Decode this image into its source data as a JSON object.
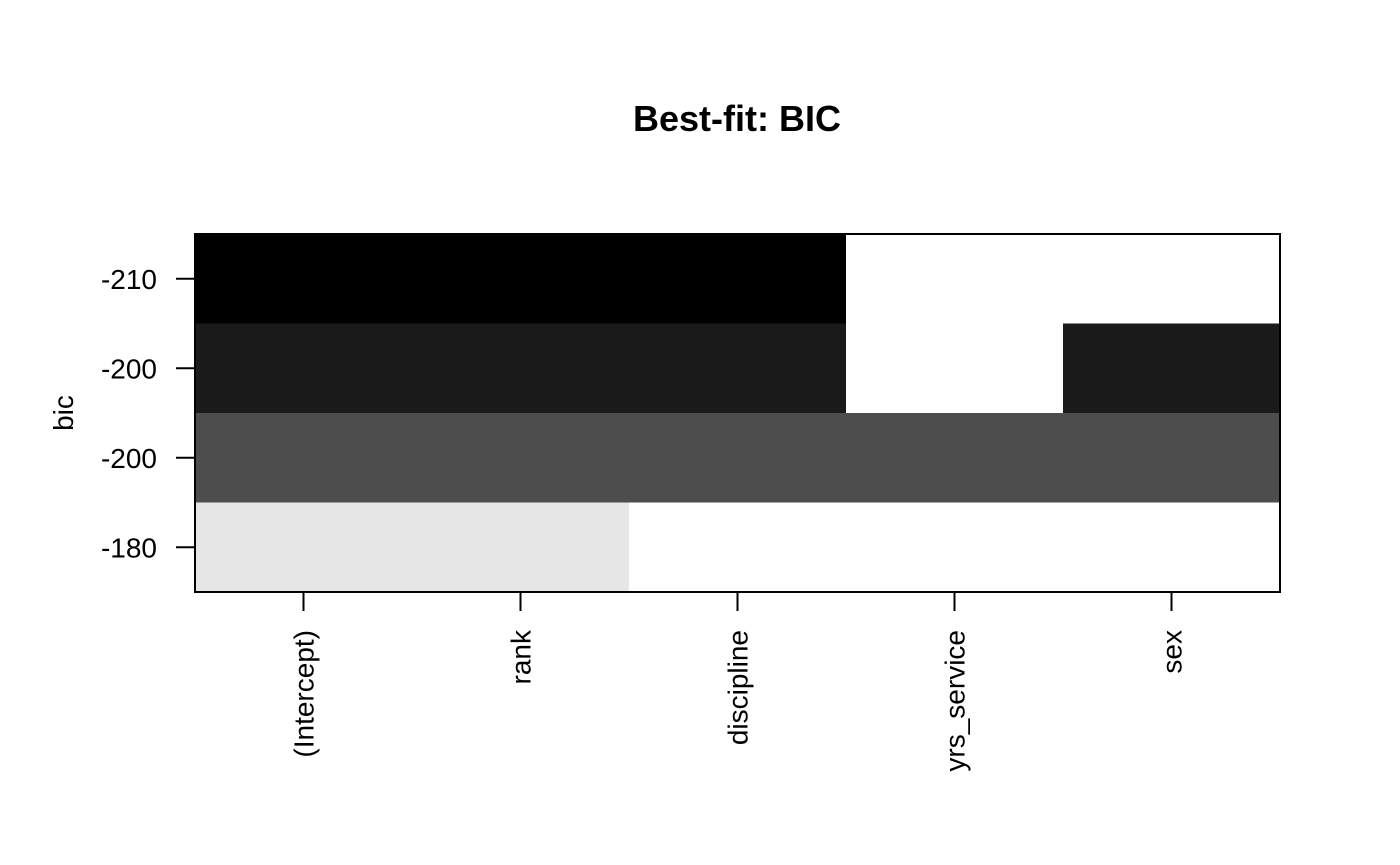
{
  "chart_data": {
    "type": "heatmap",
    "title": "Best-fit: BIC",
    "xlabel": "",
    "ylabel": "bic",
    "x_labels": [
      "(Intercept)",
      "rank",
      "discipline",
      "yrs_service",
      "sex"
    ],
    "y_labels": [
      "-210",
      "-200",
      "-200",
      "-180"
    ],
    "cells": [
      [
        "#000000",
        "#000000",
        "#000000",
        "#ffffff",
        "#ffffff"
      ],
      [
        "#1a1a1a",
        "#1a1a1a",
        "#1a1a1a",
        "#ffffff",
        "#1a1a1a"
      ],
      [
        "#4d4d4d",
        "#4d4d4d",
        "#4d4d4d",
        "#4d4d4d",
        "#4d4d4d"
      ],
      [
        "#e6e6e6",
        "#e6e6e6",
        "#ffffff",
        "#ffffff",
        "#ffffff"
      ]
    ],
    "legend": "none",
    "grid": false
  }
}
